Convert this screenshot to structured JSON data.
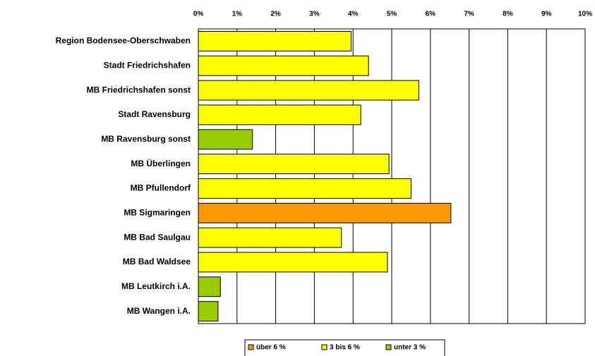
{
  "chart_data": {
    "type": "barh",
    "categories": [
      "Region Bodensee-Oberschwaben",
      "Stadt Friedrichshafen",
      "MB Friedrichshafen sonst",
      "Stadt Ravensburg",
      "MB Ravensburg sonst",
      "MB Überlingen",
      "MB Pfullendorf",
      "MB Sigmaringen",
      "MB Bad Saulgau",
      "MB Bad Waldsee",
      "MB Leutkirch i.A.",
      "MB Wangen i.A."
    ],
    "values": [
      3.95,
      4.4,
      5.7,
      4.2,
      1.4,
      4.93,
      5.5,
      6.53,
      3.7,
      4.89,
      0.57,
      0.51
    ],
    "colors": [
      "#ffff00",
      "#ffff00",
      "#ffff00",
      "#ffff00",
      "#99cc00",
      "#ffff00",
      "#ffff00",
      "#ff9900",
      "#ffff00",
      "#ffff00",
      "#99cc00",
      "#99cc00"
    ],
    "xlim": [
      0,
      10
    ],
    "xticks": [
      {
        "value": 0,
        "label": "0%"
      },
      {
        "value": 1,
        "label": "1%"
      },
      {
        "value": 2,
        "label": "2%"
      },
      {
        "value": 3,
        "label": "3%"
      },
      {
        "value": 4,
        "label": "4%"
      },
      {
        "value": 5,
        "label": "5%"
      },
      {
        "value": 6,
        "label": "6%"
      },
      {
        "value": 7,
        "label": "7%"
      },
      {
        "value": 8,
        "label": "8%"
      },
      {
        "value": 9,
        "label": "9%"
      },
      {
        "value": 10,
        "label": "10%"
      }
    ],
    "grid": true,
    "legend_position": "bottom",
    "legend": [
      {
        "name": "über 6 %",
        "color": "#ff9900"
      },
      {
        "name": "3 bis 6 %",
        "color": "#ffff00"
      },
      {
        "name": "unter 3 %",
        "color": "#99cc00"
      }
    ]
  }
}
